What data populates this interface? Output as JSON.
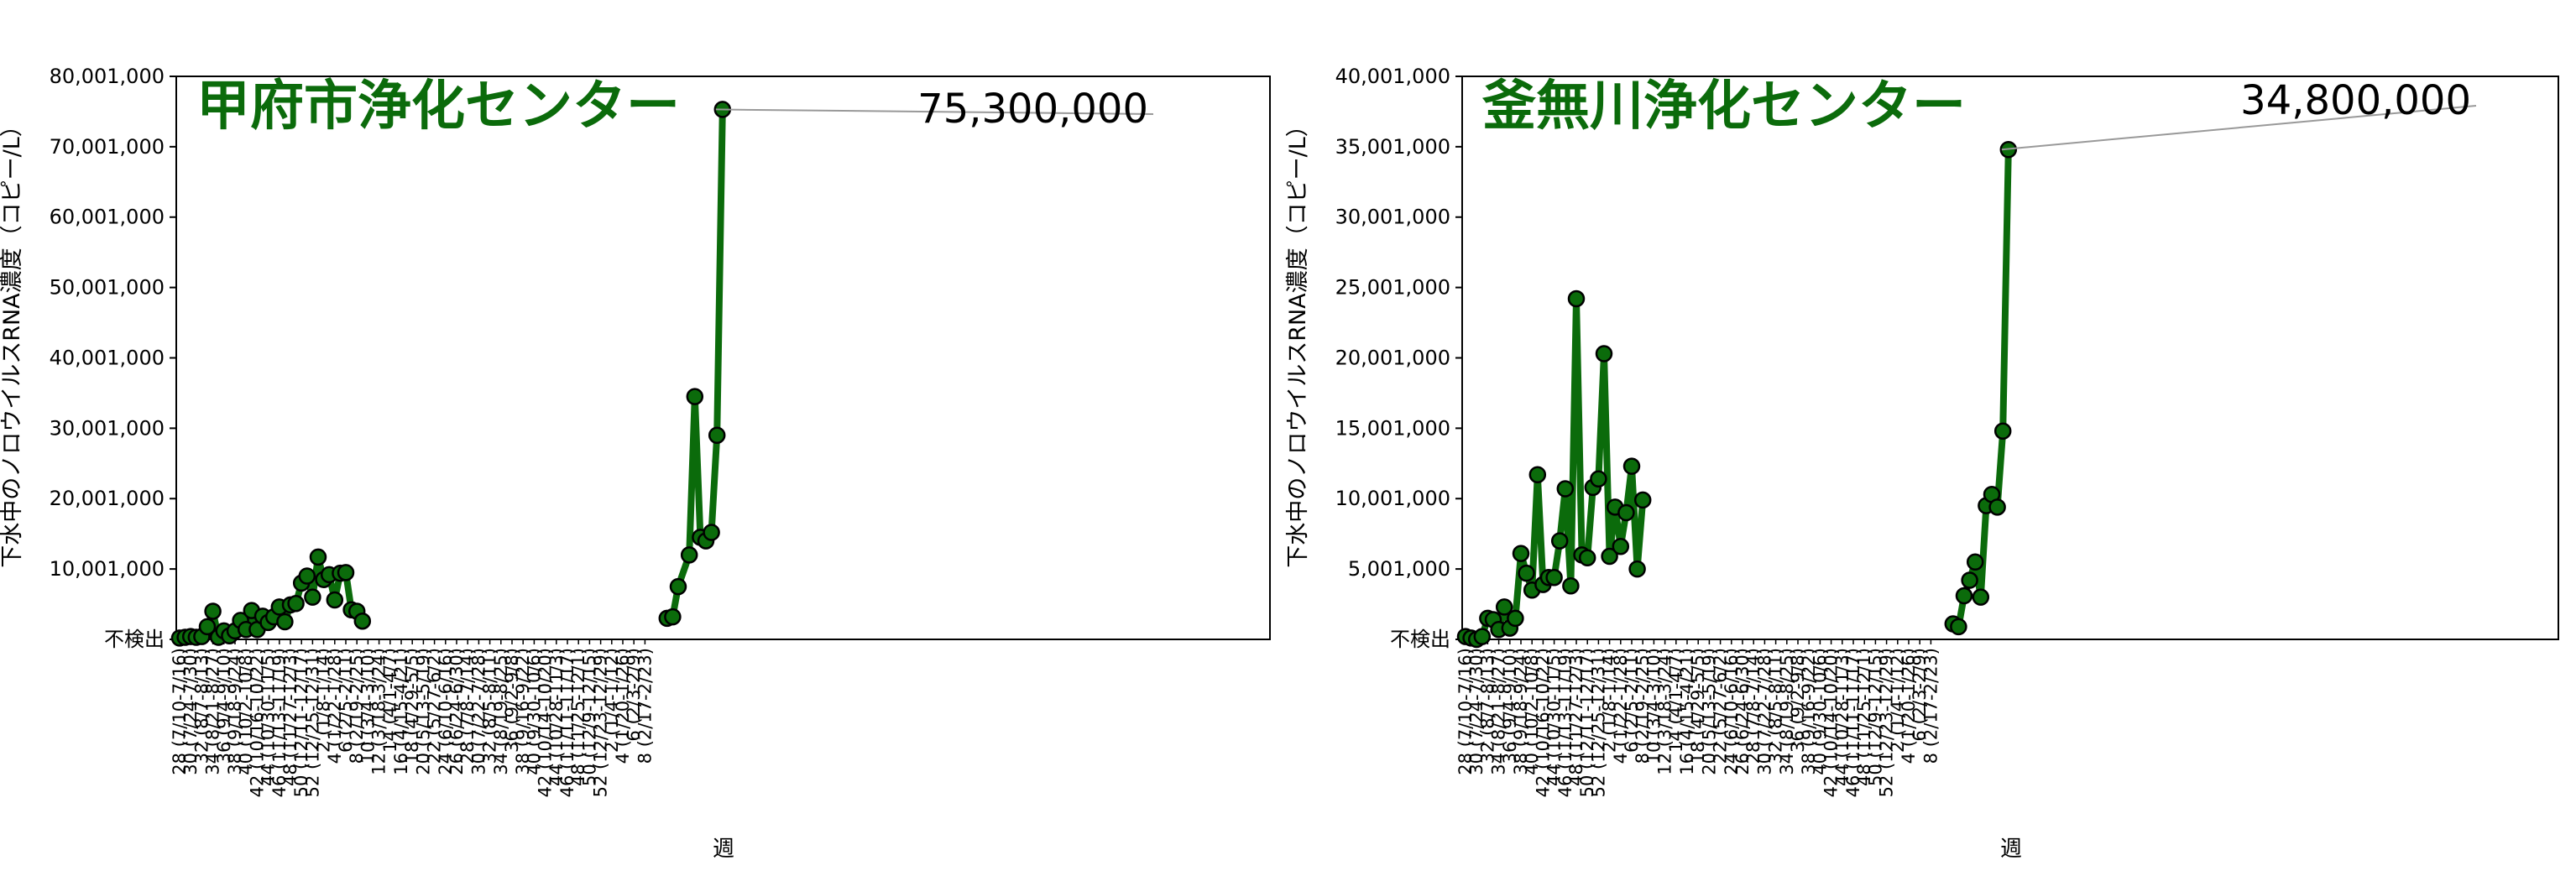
{
  "chart_data": [
    {
      "type": "line",
      "title": "甲府市浄化センター",
      "xlabel": "週",
      "ylabel": "下水中のノロウイルスRNA濃度（コピー/L）",
      "ylim": [
        0,
        80001000
      ],
      "yticks": [
        {
          "value": 0,
          "label": "不検出"
        },
        {
          "value": 10001000,
          "label": "10,001,000"
        },
        {
          "value": 20001000,
          "label": "20,001,000"
        },
        {
          "value": 30001000,
          "label": "30,001,000"
        },
        {
          "value": 40001000,
          "label": "40,001,000"
        },
        {
          "value": 50001000,
          "label": "50,001,000"
        },
        {
          "value": 60001000,
          "label": "60,001,000"
        },
        {
          "value": 70001000,
          "label": "70,001,000"
        },
        {
          "value": 80001000,
          "label": "80,001,000"
        }
      ],
      "annotation": "75,300,000",
      "color": "#0b6b0b",
      "series": [
        {
          "values": [
            [
              0,
              200000
            ],
            [
              1,
              300000
            ],
            [
              2,
              400000
            ],
            [
              3,
              300000
            ],
            [
              4,
              400000
            ],
            [
              5,
              1800000
            ],
            [
              6,
              4000000
            ],
            [
              7,
              300000
            ],
            [
              8,
              1200000
            ],
            [
              9,
              500000
            ],
            [
              10,
              1200000
            ],
            [
              11,
              2700000
            ],
            [
              12,
              1400000
            ],
            [
              13,
              4100000
            ],
            [
              14,
              1400000
            ],
            [
              15,
              3300000
            ],
            [
              16,
              2400000
            ],
            [
              17,
              3200000
            ],
            [
              18,
              4600000
            ],
            [
              19,
              2500000
            ],
            [
              20,
              4900000
            ],
            [
              21,
              5100000
            ],
            [
              22,
              8000000
            ],
            [
              23,
              9000000
            ],
            [
              24,
              6000000
            ],
            [
              25,
              11700000
            ],
            [
              26,
              8500000
            ],
            [
              27,
              9200000
            ],
            [
              28,
              5600000
            ],
            [
              29,
              9400000
            ],
            [
              30,
              9500000
            ],
            [
              31,
              4200000
            ],
            [
              32,
              4000000
            ],
            [
              33,
              2600000
            ]
          ]
        },
        {
          "values": [
            [
              88,
              3000000
            ],
            [
              89,
              3200000
            ],
            [
              90,
              7500000
            ],
            [
              92,
              12000000
            ],
            [
              93,
              34500000
            ],
            [
              94,
              14500000
            ],
            [
              95,
              14000000
            ],
            [
              96,
              15200000
            ],
            [
              97,
              29000000
            ],
            [
              98,
              75300000
            ]
          ]
        }
      ],
      "categories": [
        "28 (7/10-7/16)",
        "30 (7/24-7/30)",
        "32 (8/7-8/13)",
        "34 (8/21-8/27)",
        "36 (9/4-9/10)",
        "38 (9/18-9/24)",
        "40 (10/2-10/8)",
        "42 (10/16-10/22)",
        "44 (10/30-11/5)",
        "46 (11/13-11/19)",
        "48 (11/27-12/3)",
        "50 (12/11-12/17)",
        "52 (12/25-12/31)",
        "2 (1/8-1/14)",
        "4 (1/22-1/28)",
        "6 (2/5-2/11)",
        "8 (2/19-2/25)",
        "10 (3/4-3/10)",
        "12 (3/18-3/24)",
        "14 (4/1-4/7)",
        "16 (4/15-4/21)",
        "18 (4/29-5/5)",
        "20 (5/13-5/19)",
        "22 (5/27-6/2)",
        "24 (6/10-6/16)",
        "26 (6/24-6/30)",
        "28 (7/8-7/14)",
        "30 (7/22-7/28)",
        "32 (8/5-8/11)",
        "34 (8/19-8/25)",
        "36 (9/2-9/8)",
        "38 (9/16-9/22)",
        "40 (9/30-10/6)",
        "42 (10/14-10/20)",
        "44 (10/28-11/3)",
        "46 (11/11-11/17)",
        "48 (11/25-12/1)",
        "50 (12/9-12/15)",
        "52 (12/23-12/29)",
        "2 (1/4-1/12)",
        "4 (1/20-1/26)",
        "6 (2/3-2/9)",
        "8 (2/17-2/23)"
      ]
    },
    {
      "type": "line",
      "title": "釜無川浄化センター",
      "xlabel": "週",
      "ylabel": "下水中のノロウイルスRNA濃度（コピー/L）",
      "ylim": [
        0,
        40001000
      ],
      "yticks": [
        {
          "value": 0,
          "label": "不検出"
        },
        {
          "value": 5001000,
          "label": "5,001,000"
        },
        {
          "value": 10001000,
          "label": "10,001,000"
        },
        {
          "value": 15001000,
          "label": "15,001,000"
        },
        {
          "value": 20001000,
          "label": "20,001,000"
        },
        {
          "value": 25001000,
          "label": "25,001,000"
        },
        {
          "value": 30001000,
          "label": "30,001,000"
        },
        {
          "value": 35001000,
          "label": "35,001,000"
        },
        {
          "value": 40001000,
          "label": "40,001,000"
        }
      ],
      "annotation": "34,800,000",
      "color": "#0b6b0b",
      "series": [
        {
          "values": [
            [
              0,
              200000
            ],
            [
              1,
              100000
            ],
            [
              2,
              0
            ],
            [
              3,
              200000
            ],
            [
              4,
              1500000
            ],
            [
              5,
              1400000
            ],
            [
              6,
              700000
            ],
            [
              7,
              2300000
            ],
            [
              8,
              800000
            ],
            [
              9,
              1500000
            ],
            [
              10,
              6100000
            ],
            [
              11,
              4700000
            ],
            [
              12,
              3500000
            ],
            [
              13,
              11700000
            ],
            [
              14,
              3900000
            ],
            [
              15,
              4400000
            ],
            [
              16,
              4400000
            ],
            [
              17,
              7000000
            ],
            [
              18,
              10700000
            ],
            [
              19,
              3800000
            ],
            [
              20,
              24200000
            ],
            [
              21,
              6000000
            ],
            [
              22,
              5800000
            ],
            [
              23,
              10800000
            ],
            [
              24,
              11400000
            ],
            [
              25,
              20300000
            ],
            [
              26,
              5900000
            ],
            [
              27,
              9400000
            ],
            [
              28,
              6600000
            ],
            [
              29,
              9000000
            ],
            [
              30,
              12300000
            ],
            [
              31,
              5000000
            ],
            [
              32,
              9900000
            ]
          ]
        },
        {
          "values": [
            [
              88,
              1100000
            ],
            [
              89,
              900000
            ],
            [
              90,
              3100000
            ],
            [
              91,
              4200000
            ],
            [
              92,
              5500000
            ],
            [
              93,
              3000000
            ],
            [
              94,
              9500000
            ],
            [
              95,
              10300000
            ],
            [
              96,
              9400000
            ],
            [
              97,
              14800000
            ],
            [
              98,
              34800000
            ]
          ]
        }
      ],
      "categories": [
        "28 (7/10-7/16)",
        "30 (7/24-7/30)",
        "32 (8/7-8/13)",
        "34 (8/21-8/27)",
        "36 (9/4-9/10)",
        "38 (9/18-9/24)",
        "40 (10/2-10/8)",
        "42 (10/16-10/22)",
        "44 (10/30-11/5)",
        "46 (11/13-11/19)",
        "48 (11/27-12/3)",
        "50 (12/11-12/17)",
        "52 (12/25-12/31)",
        "2 (1/8-1/14)",
        "4 (1/22-1/28)",
        "6 (2/5-2/11)",
        "8 (2/19-2/25)",
        "10 (3/4-3/10)",
        "12 (3/18-3/24)",
        "14 (4/1-4/7)",
        "16 (4/15-4/21)",
        "18 (4/29-5/5)",
        "20 (5/13-5/19)",
        "22 (5/27-6/2)",
        "24 (6/10-6/16)",
        "26 (6/24-6/30)",
        "28 (7/8-7/14)",
        "30 (7/22-7/28)",
        "32 (8/5-8/11)",
        "34 (8/19-8/25)",
        "36 (9/2-9/8)",
        "38 (9/16-9/22)",
        "40 (9/30-10/6)",
        "42 (10/14-10/20)",
        "44 (10/28-11/3)",
        "46 (11/11-11/17)",
        "48 (11/25-12/1)",
        "50 (12/9-12/15)",
        "52 (12/23-12/29)",
        "2 (1/4-1/12)",
        "4 (1/20-1/26)",
        "6 (2/3-2/9)",
        "8 (2/17-2/23)"
      ]
    }
  ]
}
